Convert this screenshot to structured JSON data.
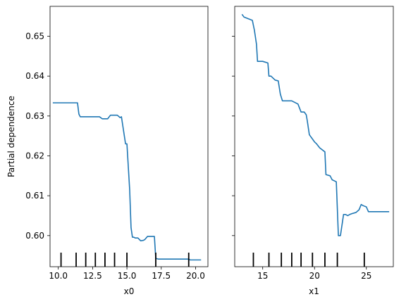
{
  "chart_data": [
    {
      "type": "line",
      "xlabel": "x0",
      "ylabel": "Partial dependence",
      "xlim": [
        9.4,
        20.9
      ],
      "ylim": [
        0.5922,
        0.6575
      ],
      "xticks": [
        10.0,
        12.5,
        15.0,
        17.5,
        20.0
      ],
      "xtick_labels": [
        "10.0",
        "12.5",
        "15.0",
        "17.5",
        "20.0"
      ],
      "yticks": [
        0.6,
        0.61,
        0.62,
        0.63,
        0.64,
        0.65
      ],
      "ytick_labels": [
        "0.60",
        "0.61",
        "0.62",
        "0.63",
        "0.64",
        "0.65"
      ],
      "show_ytick_labels": true,
      "series": [
        {
          "color": "#1f77b4",
          "x": [
            9.6,
            11.4,
            11.5,
            11.6,
            13.0,
            13.2,
            13.6,
            13.8,
            14.3,
            14.5,
            14.6,
            14.9,
            15.0,
            15.2,
            15.3,
            15.4,
            15.5,
            15.6,
            15.8,
            16.0,
            16.2,
            16.3,
            16.5,
            17.0,
            17.1,
            17.3,
            17.5,
            19.5,
            19.6,
            20.4
          ],
          "y": [
            0.6333,
            0.6333,
            0.6305,
            0.6298,
            0.6298,
            0.6293,
            0.6293,
            0.6302,
            0.6302,
            0.6296,
            0.6298,
            0.623,
            0.623,
            0.6115,
            0.602,
            0.5996,
            0.5996,
            0.5994,
            0.5994,
            0.5987,
            0.5988,
            0.599,
            0.5998,
            0.5998,
            0.5943,
            0.5941,
            0.5941,
            0.5941,
            0.5939,
            0.5939
          ]
        }
      ],
      "deciles": [
        10.2,
        11.3,
        12.0,
        12.7,
        13.4,
        14.1,
        15.0,
        17.1,
        19.5
      ]
    },
    {
      "type": "line",
      "xlabel": "x1",
      "ylabel": "",
      "xlim": [
        12.3,
        27.6
      ],
      "ylim": [
        0.5922,
        0.6575
      ],
      "xticks": [
        15,
        20,
        25
      ],
      "xtick_labels": [
        "15",
        "20",
        "25"
      ],
      "yticks": [
        0.6,
        0.61,
        0.62,
        0.63,
        0.64,
        0.65
      ],
      "ytick_labels": [],
      "show_ytick_labels": false,
      "series": [
        {
          "color": "#1f77b4",
          "x": [
            13.0,
            13.2,
            13.5,
            14.0,
            14.2,
            14.4,
            14.5,
            15.0,
            15.5,
            15.6,
            15.8,
            16.2,
            16.5,
            16.7,
            16.9,
            17.8,
            18.4,
            18.7,
            19.0,
            19.2,
            19.3,
            19.5,
            20.0,
            20.2,
            20.5,
            21.0,
            21.1,
            21.5,
            21.7,
            22.1,
            22.3,
            22.5,
            22.8,
            23.0,
            23.2,
            23.4,
            23.6,
            24.0,
            24.3,
            24.5,
            24.7,
            25.0,
            25.2,
            25.5,
            27.2
          ],
          "y": [
            0.6555,
            0.6548,
            0.6545,
            0.654,
            0.6515,
            0.648,
            0.6437,
            0.6437,
            0.6433,
            0.64,
            0.64,
            0.639,
            0.6388,
            0.6355,
            0.6338,
            0.6338,
            0.633,
            0.631,
            0.631,
            0.6303,
            0.6288,
            0.6253,
            0.6235,
            0.623,
            0.622,
            0.621,
            0.6153,
            0.615,
            0.614,
            0.6135,
            0.6,
            0.6,
            0.6053,
            0.6053,
            0.605,
            0.6053,
            0.6055,
            0.6058,
            0.6065,
            0.6078,
            0.6075,
            0.6072,
            0.606,
            0.606,
            0.606
          ]
        }
      ],
      "deciles": [
        14.1,
        15.6,
        16.8,
        17.8,
        18.7,
        19.8,
        21.0,
        22.2,
        24.8
      ]
    }
  ]
}
